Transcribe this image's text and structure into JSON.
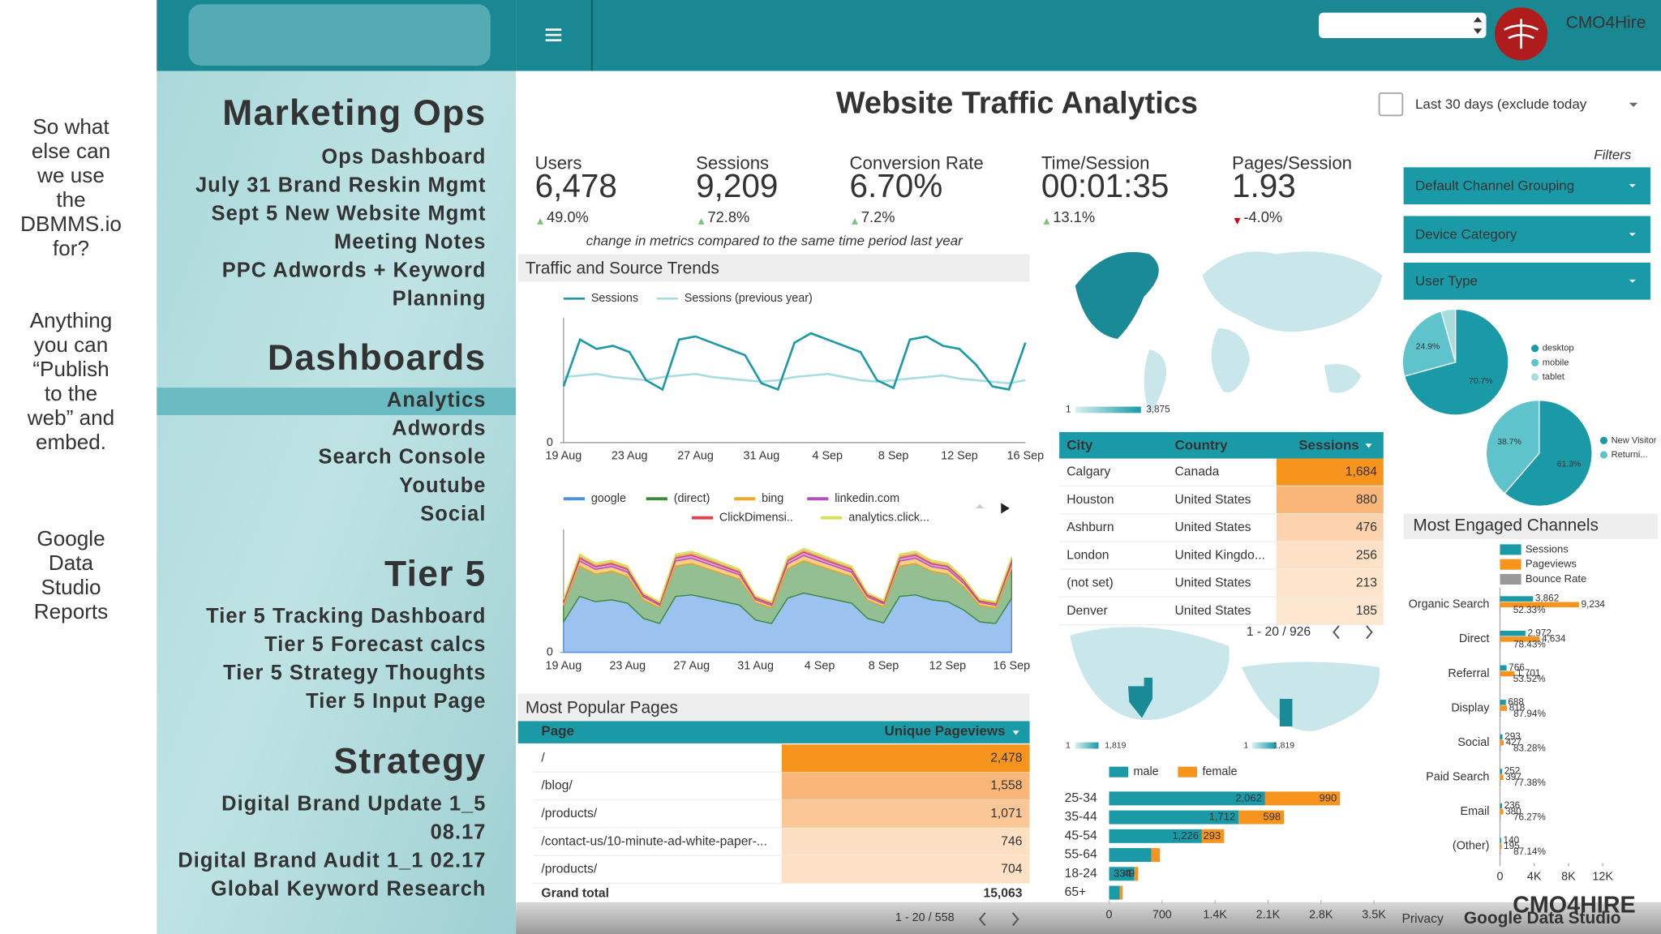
{
  "notes": [
    [
      "So what",
      "else can",
      "we use",
      "the",
      "DBMMS.io",
      "for?"
    ],
    [
      "Anything",
      "you can",
      "“Publish",
      "to the",
      "web” and",
      "embed."
    ],
    [
      "Google",
      "Data",
      "Studio",
      "Reports"
    ]
  ],
  "sidebar": [
    {
      "title": "Marketing Ops",
      "items": [
        "Ops Dashboard",
        "July 31 Brand Reskin Mgmt",
        "Sept 5 New Website Mgmt",
        "Meeting Notes",
        "PPC Adwords + Keyword",
        "Planning"
      ]
    },
    {
      "title": "Dashboards",
      "items": [
        "Analytics",
        "Adwords",
        "Search Console",
        "Youtube",
        "Social"
      ]
    },
    {
      "title": "Tier 5",
      "items": [
        "Tier 5 Tracking Dashboard",
        "Tier 5 Forecast calcs",
        "Tier 5 Strategy Thoughts",
        "Tier 5 Input Page"
      ]
    },
    {
      "title": "Strategy",
      "items": [
        "Digital Brand Update 1_5",
        "08.17",
        "Digital Brand Audit 1_1 02.17",
        "Global Keyword Research"
      ]
    }
  ],
  "header": {
    "brand": "CMO4Hire"
  },
  "report": {
    "title": "Website Traffic  Analytics",
    "date_range": "Last 30 days (exclude today",
    "filters_label": "Filters",
    "filters": [
      "Default Channel Grouping",
      "Device Category",
      "User Type"
    ]
  },
  "metrics": {
    "items": [
      {
        "label": "Users",
        "value": "6,478",
        "change": "49.0%"
      },
      {
        "label": "Sessions",
        "value": "9,209",
        "change": "72.8%"
      },
      {
        "label": "Conversion Rate",
        "value": "6.70%",
        "change": "7.2%"
      },
      {
        "label": "Time/Session",
        "value": "00:01:35",
        "change": "13.1%"
      },
      {
        "label": "Pages/Session",
        "value": "1.93",
        "change": "-4.0%"
      }
    ],
    "note": "change in metrics compared to the same time period last year"
  },
  "trend": {
    "type": "line",
    "title": "Traffic and Source Trends",
    "categories": [
      "19 Aug",
      null,
      null,
      null,
      "23 Aug",
      null,
      null,
      null,
      "27 Aug",
      null,
      null,
      null,
      "31 Aug",
      null,
      null,
      null,
      "4 Sep",
      null,
      null,
      null,
      "8 Sep",
      null,
      null,
      null,
      "12 Sep",
      null,
      null,
      null,
      "16 Sep"
    ],
    "series": [
      {
        "name": "Sessions",
        "color": "#1a9aa6",
        "values": [
          180,
          330,
          300,
          310,
          290,
          200,
          170,
          330,
          340,
          320,
          300,
          280,
          190,
          170,
          320,
          350,
          330,
          310,
          290,
          200,
          175,
          330,
          340,
          310,
          300,
          250,
          180,
          170,
          320
        ]
      },
      {
        "name": "Sessions (previous year)",
        "color": "#a8dde0",
        "values": [
          210,
          215,
          220,
          210,
          205,
          200,
          210,
          215,
          220,
          210,
          205,
          200,
          195,
          200,
          210,
          215,
          220,
          210,
          200,
          195,
          200,
          205,
          210,
          215,
          205,
          200,
          195,
          190,
          200
        ]
      }
    ],
    "ylim": [
      0,
      400
    ],
    "yticks": [
      0
    ]
  },
  "channels": {
    "type": "area",
    "categories": [
      "19 Aug",
      null,
      null,
      null,
      "23 Aug",
      null,
      null,
      null,
      "27 Aug",
      null,
      null,
      null,
      "31 Aug",
      null,
      null,
      null,
      "4 Sep",
      null,
      null,
      null,
      "8 Sep",
      null,
      null,
      null,
      "12 Sep",
      null,
      null,
      null,
      "16 Sep"
    ],
    "series": [
      {
        "name": "google",
        "color": "#4a90e2",
        "values": [
          99,
          182,
          165,
          171,
          160,
          110,
          94,
          182,
          187,
          176,
          165,
          154,
          105,
          94,
          176,
          193,
          182,
          171,
          160,
          110,
          96,
          182,
          187,
          171,
          165,
          138,
          99,
          94,
          176
        ]
      },
      {
        "name": "(direct)",
        "color": "#3a8a3a",
        "values": [
          54,
          99,
          90,
          93,
          87,
          60,
          51,
          99,
          102,
          96,
          90,
          84,
          57,
          51,
          96,
          105,
          99,
          93,
          87,
          60,
          53,
          99,
          102,
          93,
          90,
          75,
          54,
          51,
          96
        ]
      },
      {
        "name": "bing",
        "color": "#f5a623",
        "values": [
          9,
          16,
          15,
          15,
          14,
          10,
          8,
          16,
          17,
          16,
          15,
          14,
          9,
          8,
          16,
          17,
          16,
          15,
          14,
          10,
          9,
          16,
          17,
          15,
          15,
          12,
          9,
          8,
          16
        ]
      },
      {
        "name": "linkedin.com",
        "color": "#b04fc0",
        "values": [
          5,
          10,
          9,
          9,
          9,
          6,
          5,
          10,
          10,
          10,
          9,
          8,
          6,
          5,
          10,
          11,
          10,
          9,
          9,
          6,
          5,
          10,
          10,
          9,
          9,
          8,
          5,
          5,
          10
        ]
      },
      {
        "name": "ClickDimensi..",
        "color": "#e0434b",
        "values": [
          4,
          8,
          7,
          7,
          7,
          5,
          4,
          8,
          8,
          8,
          7,
          7,
          4,
          4,
          8,
          8,
          8,
          7,
          7,
          5,
          4,
          8,
          8,
          7,
          7,
          6,
          4,
          4,
          8
        ]
      },
      {
        "name": "analytics.click...",
        "color": "#d4e157",
        "values": [
          3,
          5,
          5,
          5,
          4,
          3,
          3,
          5,
          5,
          5,
          5,
          4,
          3,
          3,
          5,
          5,
          5,
          5,
          4,
          3,
          3,
          5,
          5,
          5,
          5,
          4,
          3,
          3,
          5
        ]
      }
    ],
    "ylim": [
      0,
      400
    ],
    "yticks": [
      0
    ]
  },
  "geo": {
    "world_legend": [
      "1",
      "3,875"
    ],
    "table": {
      "columns": [
        "City",
        "Country",
        "Sessions"
      ],
      "rows": [
        [
          "Calgary",
          "Canada",
          "1,684"
        ],
        [
          "Houston",
          "United States",
          "880"
        ],
        [
          "Ashburn",
          "United States",
          "476"
        ],
        [
          "London",
          "United Kingdo...",
          "256"
        ],
        [
          "(not set)",
          "United States",
          "213"
        ],
        [
          "Denver",
          "United States",
          "185"
        ]
      ],
      "pagination": "1 - 20 / 926"
    },
    "region_legends": [
      [
        "1",
        "1,819"
      ],
      [
        "1",
        "1,819"
      ]
    ]
  },
  "devices": {
    "type": "pie",
    "categories": [
      "desktop",
      "mobile",
      "tablet"
    ],
    "values": [
      70.7,
      24.9,
      4.4
    ],
    "value_labels": [
      "70.7%",
      "24.9%",
      null
    ],
    "colors": [
      "#1a9aa6",
      "#5fc3cc",
      "#a8dde0"
    ]
  },
  "visitors": {
    "type": "pie",
    "categories": [
      "New Visitor",
      "Returni..."
    ],
    "values": [
      61.3,
      38.7
    ],
    "value_labels": [
      "61.3%",
      "38.7%"
    ],
    "colors": [
      "#1a9aa6",
      "#5fc3cc"
    ]
  },
  "age": {
    "type": "hbar",
    "categories": [
      "25-34",
      "35-44",
      "45-54",
      "55-64",
      "18-24",
      "65+"
    ],
    "series": [
      {
        "name": "male",
        "color": "#1a9aa6",
        "values": [
          2062,
          1712,
          1226,
          560,
          334,
          140
        ],
        "value_labels": [
          "2,062",
          "1,712",
          "1,226",
          null,
          "334",
          null
        ]
      },
      {
        "name": "female",
        "color": "#f7941d",
        "values": [
          990,
          598,
          293,
          112,
          49,
          40
        ],
        "value_labels": [
          "990",
          "598",
          "293",
          null,
          "49",
          null
        ]
      }
    ],
    "xlim": [
      0,
      3500
    ],
    "xticks": [
      0,
      700,
      {
        "value": 1400,
        "label": "1.4K"
      },
      {
        "value": 2100,
        "label": "2.1K"
      },
      {
        "value": 2800,
        "label": "2.8K"
      },
      {
        "value": 3500,
        "label": "3.5K"
      }
    ]
  },
  "engaged": {
    "type": "hbar",
    "title": "Most Engaged Channels",
    "categories": [
      "Organic Search",
      "Direct",
      "Referral",
      "Display",
      "Social",
      "Paid Search",
      "Email",
      "(Other)"
    ],
    "series": [
      {
        "name": "Sessions",
        "color": "#1a9aa6",
        "values": [
          3862,
          2972,
          766,
          688,
          293,
          252,
          236,
          140
        ],
        "value_labels": [
          "3,862",
          "2,972",
          "766",
          "688",
          "293",
          "252",
          "236",
          "140"
        ]
      },
      {
        "name": "Pageviews",
        "color": "#f7941d",
        "values": [
          9234,
          4634,
          1701,
          818,
          427,
          397,
          380,
          195
        ],
        "value_labels": [
          "9,234",
          "4,634",
          "1,701",
          "818",
          "427",
          "397",
          "380",
          "195"
        ]
      },
      {
        "name": "Bounce Rate",
        "color": "#999999",
        "values": [
          52.33,
          78.43,
          53.52,
          87.94,
          83.28,
          77.38,
          76.27,
          87.14
        ],
        "value_labels": [
          "52.33%",
          "78.43%",
          "53.52%",
          "87.94%",
          "83.28%",
          "77.38%",
          "76.27%",
          "87.14%"
        ]
      }
    ],
    "xlim": [
      0,
      12000
    ],
    "xticks": [
      0,
      {
        "value": 4000,
        "label": "4K"
      },
      {
        "value": 8000,
        "label": "8K"
      },
      {
        "value": 12000,
        "label": "12K"
      }
    ]
  },
  "pages": {
    "title": "Most Popular Pages",
    "columns": [
      "Page",
      "Unique Pageviews"
    ],
    "rows": [
      [
        "/",
        "2,478"
      ],
      [
        "/blog/",
        "1,558"
      ],
      [
        "/products/",
        "1,071"
      ],
      [
        "/contact-us/10-minute-ad-white-paper-...",
        "746"
      ],
      [
        "/products/",
        "704"
      ]
    ],
    "total": [
      "Grand total",
      "15,063"
    ],
    "pagination": "1 - 20 / 558"
  },
  "footer": {
    "privacy": "Privacy",
    "product": "Google Data Studio",
    "logo": "CMO4HIRE"
  }
}
